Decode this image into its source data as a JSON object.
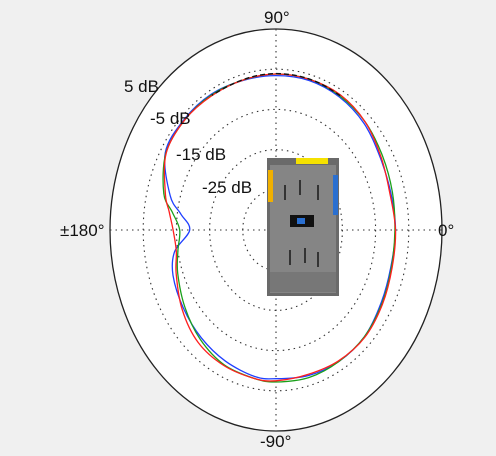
{
  "chart_data": {
    "type": "polar",
    "angle_labels": [
      {
        "angle_deg": 90,
        "text": "90°"
      },
      {
        "angle_deg": 0,
        "text": "0°"
      },
      {
        "angle_deg": -90,
        "text": "-90°"
      },
      {
        "angle_deg": 180,
        "text": "±180°"
      }
    ],
    "r_ticks": [
      {
        "value": 5,
        "text": "5 dB"
      },
      {
        "value": -5,
        "text": "-5 dB"
      },
      {
        "value": -15,
        "text": "-15 dB"
      },
      {
        "value": -25,
        "text": "-25 dB"
      }
    ],
    "r_range": [
      -35,
      15
    ],
    "grid": true,
    "series": [
      {
        "color": "#1f3fff",
        "angles": [
          0,
          15,
          30,
          45,
          60,
          75,
          90,
          105,
          120,
          135,
          150,
          165,
          172,
          180,
          190,
          200,
          215,
          230,
          245,
          260,
          270,
          285,
          300,
          315,
          330,
          345
        ],
        "values": [
          1.0,
          0.8,
          1.2,
          2.5,
          3.2,
          3.5,
          3.4,
          3.5,
          4.0,
          4.0,
          3.5,
          -2.0,
          -6.0,
          -9.0,
          -4.0,
          -2.0,
          -1.0,
          0.0,
          1.0,
          2.0,
          2.0,
          2.5,
          2.8,
          2.6,
          1.5,
          0.8
        ]
      },
      {
        "color": "#1aa01a",
        "angles": [
          0,
          15,
          30,
          45,
          60,
          75,
          90,
          105,
          120,
          135,
          150,
          165,
          172,
          180,
          190,
          200,
          215,
          230,
          245,
          260,
          270,
          285,
          300,
          315,
          330,
          345
        ],
        "values": [
          0.8,
          1.3,
          2.0,
          3.0,
          3.5,
          3.8,
          3.8,
          3.6,
          3.8,
          3.8,
          3.3,
          0.0,
          -3.5,
          -6.0,
          -5.0,
          -3.5,
          -1.5,
          0.5,
          2.0,
          2.5,
          2.8,
          3.0,
          2.8,
          2.6,
          1.8,
          1.0
        ]
      },
      {
        "color": "#ff1f1f",
        "angles": [
          0,
          15,
          30,
          45,
          60,
          75,
          90,
          105,
          120,
          135,
          150,
          165,
          172,
          180,
          190,
          200,
          215,
          230,
          245,
          260,
          270,
          285,
          300,
          315,
          330,
          345
        ],
        "values": [
          1.0,
          0.5,
          1.5,
          3.0,
          3.8,
          3.8,
          3.8,
          3.6,
          3.6,
          3.8,
          3.2,
          -0.5,
          -2.5,
          -4.0,
          -4.5,
          -3.0,
          -0.5,
          1.5,
          2.2,
          2.5,
          2.5,
          2.2,
          2.6,
          2.8,
          2.0,
          1.2
        ]
      },
      {
        "color": "#111111",
        "angles": [
          60,
          70,
          80,
          90,
          100,
          110,
          120
        ],
        "values": [
          3.6,
          3.8,
          3.9,
          3.9,
          3.8,
          3.6,
          3.7
        ]
      }
    ]
  },
  "device": {
    "icon": "device-photo-icon",
    "yellow_accent": "#f5e100",
    "orange_accent": "#f0b000",
    "blue_accent": "#2a6fd0"
  }
}
